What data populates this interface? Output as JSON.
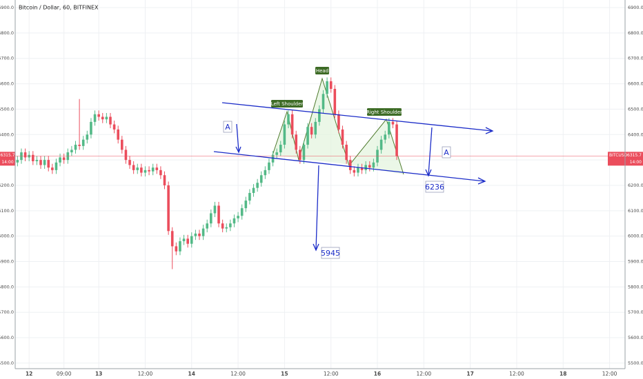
{
  "chart_data": {
    "type": "candlestick",
    "title": "Bitcoin / Dollar, 60, BITFINEX",
    "x": [
      3,
      4,
      5,
      6,
      7,
      8,
      9,
      10,
      11,
      12,
      13,
      14,
      15,
      16,
      17,
      18,
      19,
      20,
      21,
      22,
      23,
      24,
      25,
      26,
      27,
      28,
      29,
      30,
      31,
      32,
      33,
      34,
      35,
      36,
      37,
      38,
      39,
      40,
      41,
      42,
      43,
      44,
      45,
      46,
      47,
      48,
      49,
      50,
      51,
      52,
      53,
      54,
      55,
      56,
      57,
      58,
      59,
      60,
      61,
      62,
      63,
      64,
      65,
      66,
      67,
      68,
      69,
      70,
      71,
      72,
      73,
      74,
      75,
      76,
      77,
      78,
      79,
      80,
      81,
      82,
      83,
      84,
      85,
      86,
      87,
      88,
      89,
      90,
      91,
      92,
      93,
      94,
      95,
      96,
      97,
      98,
      99,
      100,
      101
    ],
    "open": [
      6290,
      6300,
      6330,
      6310,
      6320,
      6295,
      6300,
      6280,
      6300,
      6270,
      6260,
      6290,
      6310,
      6300,
      6330,
      6340,
      6360,
      6355,
      6380,
      6400,
      6450,
      6480,
      6470,
      6460,
      6470,
      6440,
      6420,
      6380,
      6340,
      6300,
      6280,
      6260,
      6270,
      6250,
      6260,
      6255,
      6270,
      6260,
      6240,
      6200,
      6020,
      5960,
      5940,
      5980,
      5990,
      5970,
      6000,
      6010,
      6000,
      6030,
      6050,
      6090,
      6120,
      6050,
      6030,
      6035,
      6050,
      6070,
      6080,
      6110,
      6140,
      6170,
      6190,
      6210,
      6240,
      6260,
      6290,
      6320,
      6330,
      6360,
      6440,
      6480,
      6400,
      6340,
      6300,
      6360,
      6430,
      6400,
      6450,
      6500,
      6560,
      6610,
      6580,
      6480,
      6420,
      6360,
      6300,
      6260,
      6250,
      6270,
      6260,
      6280,
      6270,
      6290,
      6340,
      6380,
      6400,
      6450,
      6440
    ],
    "high": [
      6315,
      6345,
      6345,
      6335,
      6335,
      6315,
      6315,
      6315,
      6315,
      6285,
      6305,
      6325,
      6325,
      6345,
      6355,
      6375,
      6540,
      6395,
      6415,
      6465,
      6495,
      6495,
      6485,
      6485,
      6485,
      6455,
      6435,
      6395,
      6355,
      6315,
      6295,
      6285,
      6285,
      6275,
      6275,
      6285,
      6285,
      6275,
      6255,
      6215,
      6035,
      5975,
      5995,
      6005,
      6005,
      6015,
      6025,
      6025,
      6045,
      6065,
      6105,
      6135,
      6135,
      6065,
      6050,
      6065,
      6085,
      6095,
      6125,
      6155,
      6185,
      6205,
      6225,
      6255,
      6275,
      6305,
      6335,
      6345,
      6375,
      6455,
      6495,
      6495,
      6415,
      6355,
      6375,
      6445,
      6445,
      6465,
      6515,
      6575,
      6625,
      6625,
      6595,
      6495,
      6435,
      6375,
      6315,
      6275,
      6285,
      6285,
      6295,
      6295,
      6305,
      6355,
      6395,
      6415,
      6465,
      6465,
      6455
    ],
    "low": [
      6275,
      6285,
      6295,
      6295,
      6280,
      6280,
      6265,
      6265,
      6255,
      6245,
      6245,
      6275,
      6285,
      6285,
      6315,
      6325,
      6340,
      6340,
      6365,
      6385,
      6435,
      6455,
      6445,
      6445,
      6425,
      6405,
      6365,
      6325,
      6285,
      6265,
      6245,
      6245,
      6235,
      6235,
      6240,
      6240,
      6245,
      6225,
      6185,
      6005,
      5870,
      5925,
      5925,
      5965,
      5955,
      5955,
      5985,
      5985,
      5985,
      6015,
      6035,
      6075,
      6035,
      6015,
      6015,
      6020,
      6035,
      6055,
      6065,
      6095,
      6125,
      6155,
      6175,
      6195,
      6225,
      6245,
      6275,
      6305,
      6315,
      6345,
      6425,
      6385,
      6325,
      6285,
      6285,
      6345,
      6385,
      6385,
      6435,
      6485,
      6545,
      6565,
      6465,
      6405,
      6345,
      6285,
      6245,
      6235,
      6235,
      6245,
      6245,
      6255,
      6255,
      6275,
      6325,
      6365,
      6385,
      6425,
      6300
    ],
    "close": [
      6300,
      6330,
      6310,
      6320,
      6295,
      6300,
      6280,
      6300,
      6270,
      6260,
      6290,
      6310,
      6300,
      6330,
      6340,
      6360,
      6355,
      6380,
      6400,
      6450,
      6480,
      6470,
      6460,
      6470,
      6440,
      6420,
      6380,
      6340,
      6300,
      6280,
      6260,
      6270,
      6250,
      6260,
      6255,
      6270,
      6260,
      6240,
      6200,
      6020,
      5960,
      5940,
      5980,
      5990,
      5970,
      6000,
      6010,
      6000,
      6030,
      6050,
      6090,
      6120,
      6050,
      6030,
      6035,
      6050,
      6070,
      6080,
      6110,
      6140,
      6170,
      6190,
      6210,
      6240,
      6260,
      6290,
      6320,
      6330,
      6360,
      6440,
      6480,
      6400,
      6340,
      6300,
      6360,
      6430,
      6400,
      6450,
      6500,
      6560,
      6610,
      6580,
      6480,
      6420,
      6360,
      6300,
      6260,
      6250,
      6270,
      6260,
      6280,
      6270,
      6290,
      6340,
      6380,
      6400,
      6450,
      6440,
      6315
    ],
    "colors": {
      "up": "#53b987",
      "down": "#eb4d5c"
    },
    "xlim": [
      2.4,
      160
    ],
    "xticks": [
      {
        "value": 6,
        "label": "12"
      },
      {
        "value": 15,
        "label": "09:00"
      },
      {
        "value": 24,
        "label": "13"
      },
      {
        "value": 36,
        "label": "12:00"
      },
      {
        "value": 48,
        "label": "14"
      },
      {
        "value": 60,
        "label": "12:00"
      },
      {
        "value": 72,
        "label": "15"
      },
      {
        "value": 84,
        "label": "12:00"
      },
      {
        "value": 96,
        "label": "16"
      },
      {
        "value": 108,
        "label": "12:00"
      },
      {
        "value": 120,
        "label": "17"
      },
      {
        "value": 132,
        "label": "12:00"
      },
      {
        "value": 144,
        "label": "18"
      },
      {
        "value": 156,
        "label": "12:00"
      }
    ],
    "ylim": [
      5478,
      6930
    ],
    "yticks": [
      {
        "value": 5500,
        "label": "5500.0"
      },
      {
        "value": 5600,
        "label": "5600.0"
      },
      {
        "value": 5700,
        "label": "5700.0"
      },
      {
        "value": 5800,
        "label": "5800.0"
      },
      {
        "value": 5900,
        "label": "5900.0"
      },
      {
        "value": 6000,
        "label": "6000.0"
      },
      {
        "value": 6100,
        "label": "6100.0"
      },
      {
        "value": 6200,
        "label": "6200.0"
      },
      {
        "value": 6300,
        "label": "6300.0"
      },
      {
        "value": 6400,
        "label": "6400.0"
      },
      {
        "value": 6500,
        "label": "6500.0"
      },
      {
        "value": 6600,
        "label": "6600.0"
      },
      {
        "value": 6700,
        "label": "6700.0"
      },
      {
        "value": 6800,
        "label": "6800.0"
      },
      {
        "value": 6900,
        "label": "6900.0"
      }
    ],
    "grid": true,
    "last_price": 6315.7,
    "symbol": "BITCUSD",
    "countdown": "14:00",
    "pattern_labels": [
      "Left Shoulder",
      "Head",
      "Right Shoulder"
    ],
    "annotations": [
      "A",
      "A",
      "6236",
      "5945"
    ]
  }
}
